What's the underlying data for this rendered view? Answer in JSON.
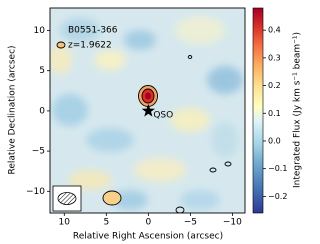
{
  "chart_data": {
    "type": "map",
    "annotations": [
      "B0551-366",
      "z=1.9622"
    ],
    "markers": [
      {
        "label": "QSO",
        "x": 0,
        "y": 0
      }
    ],
    "xlabel": "Relative Right Ascension (arcsec)",
    "ylabel": "Relative Declination (arcsec)",
    "xlim": [
      11.7,
      -11.5
    ],
    "xticks": [
      10,
      5,
      0,
      {
        "value": -5,
        "label": "−5"
      },
      {
        "value": -10,
        "label": "−10"
      }
    ],
    "ylim": [
      -12.7,
      12.8
    ],
    "yticks": [
      {
        "value": -10,
        "label": "−10"
      },
      {
        "value": -5,
        "label": "−5"
      },
      0,
      5,
      10
    ],
    "colorbar": {
      "label": "Integrated Flux (Jy km s⁻¹ beam⁻¹)",
      "lim": [
        -0.26,
        0.48
      ],
      "ticks": [
        {
          "value": -0.2,
          "label": "−0.2"
        },
        {
          "value": -0.1,
          "label": "−0.1"
        },
        {
          "value": 0,
          "label": "0.0"
        },
        0.1,
        0.2,
        0.3,
        0.4
      ]
    }
  }
}
